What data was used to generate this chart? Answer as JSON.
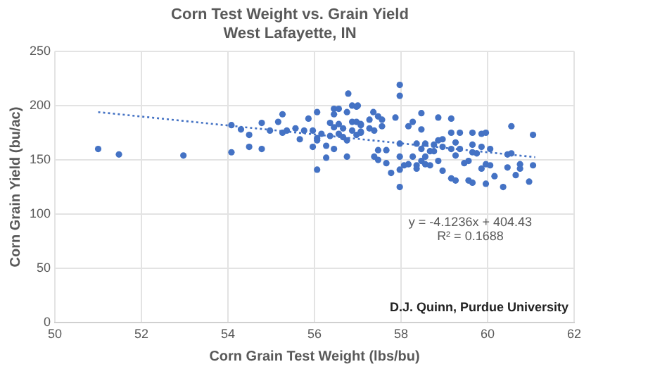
{
  "chart_data": {
    "type": "scatter",
    "title": "Corn Test Weight vs. Grain Yield",
    "subtitle": "West Lafayette, IN",
    "xlabel": "Corn Grain Test Weight (lbs/bu)",
    "ylabel": "Corn Grain Yield (bu/ac)",
    "xlim": [
      50,
      62
    ],
    "xticks": [
      50,
      52,
      54,
      56,
      58,
      60,
      62
    ],
    "ylim": [
      0,
      250
    ],
    "yticks": [
      0,
      50,
      100,
      150,
      200,
      250
    ],
    "grid": true,
    "marker": "circle",
    "annotations": [
      "y = -4.1236x + 404.43\nR² = 0.1688",
      "D.J. Quinn, Purdue University"
    ],
    "series": [
      {
        "color": "#4472c4",
        "x": [
          51.0,
          51.48,
          52.97,
          54.08,
          54.08,
          54.3,
          54.49,
          54.49,
          54.78,
          54.78,
          54.97,
          55.16,
          55.26,
          55.26,
          55.36,
          55.56,
          55.66,
          55.76,
          55.86,
          55.96,
          55.96,
          56.06,
          56.06,
          56.06,
          56.06,
          56.16,
          56.27,
          56.27,
          56.36,
          56.36,
          56.45,
          56.45,
          56.45,
          56.45,
          56.56,
          56.56,
          56.56,
          56.66,
          56.66,
          56.75,
          56.75,
          56.75,
          56.78,
          56.87,
          56.97,
          56.87,
          56.97,
          57.07,
          56.87,
          56.97,
          57.07,
          57.0,
          57.07,
          57.07,
          57.27,
          57.27,
          57.36,
          57.38,
          57.47,
          57.56,
          57.56,
          57.38,
          57.47,
          57.47,
          57.66,
          57.66,
          57.77,
          57.87,
          57.97,
          57.97,
          57.97,
          57.97,
          57.97,
          57.97,
          58.07,
          58.17,
          58.17,
          58.27,
          58.27,
          58.36,
          58.36,
          58.36,
          58.47,
          58.47,
          58.47,
          58.47,
          58.56,
          58.56,
          58.56,
          58.67,
          58.67,
          58.76,
          58.76,
          58.86,
          58.86,
          58.86,
          58.96,
          58.96,
          58.96,
          59.16,
          59.16,
          59.16,
          59.16,
          59.26,
          59.26,
          59.26,
          59.36,
          59.36,
          59.46,
          59.56,
          59.56,
          59.65,
          59.65,
          59.65,
          59.65,
          59.75,
          59.86,
          59.86,
          59.86,
          59.96,
          59.96,
          59.96,
          60.06,
          60.06,
          60.16,
          60.36,
          60.46,
          60.46,
          60.55,
          60.55,
          60.65,
          60.75,
          60.75,
          60.96,
          61.05,
          61.05
        ],
        "values": [
          160,
          155,
          154,
          157,
          182,
          178,
          173,
          162,
          184,
          160,
          177,
          185,
          192,
          175,
          177,
          179,
          169,
          177,
          188,
          177,
          162,
          194,
          170,
          168,
          141,
          174,
          163,
          152,
          184,
          172,
          197,
          192,
          180,
          160,
          197,
          183,
          174,
          179,
          171,
          194,
          168,
          153,
          211,
          200,
          199,
          185,
          185,
          182,
          177,
          173,
          176,
          200,
          183,
          175,
          187,
          179,
          194,
          177,
          190,
          187,
          181,
          153,
          159,
          150,
          159,
          147,
          138,
          189,
          219,
          209,
          165,
          153,
          141,
          125,
          145,
          181,
          146,
          185,
          153,
          165,
          145,
          142,
          193,
          178,
          160,
          149,
          165,
          153,
          146,
          158,
          145,
          164,
          158,
          189,
          168,
          149,
          169,
          162,
          140,
          188,
          175,
          160,
          133,
          166,
          154,
          131,
          175,
          160,
          147,
          149,
          131,
          175,
          164,
          157,
          129,
          156,
          174,
          162,
          142,
          175,
          146,
          128,
          160,
          145,
          135,
          125,
          155,
          143,
          181,
          156,
          136,
          146,
          142,
          130,
          173,
          145
        ]
      },
      {
        "type": "line",
        "color": "#4472c4",
        "line_style": "dotted",
        "marker": "none",
        "x": [
          51,
          61.1
        ],
        "values": [
          194,
          152.5
        ]
      }
    ]
  }
}
